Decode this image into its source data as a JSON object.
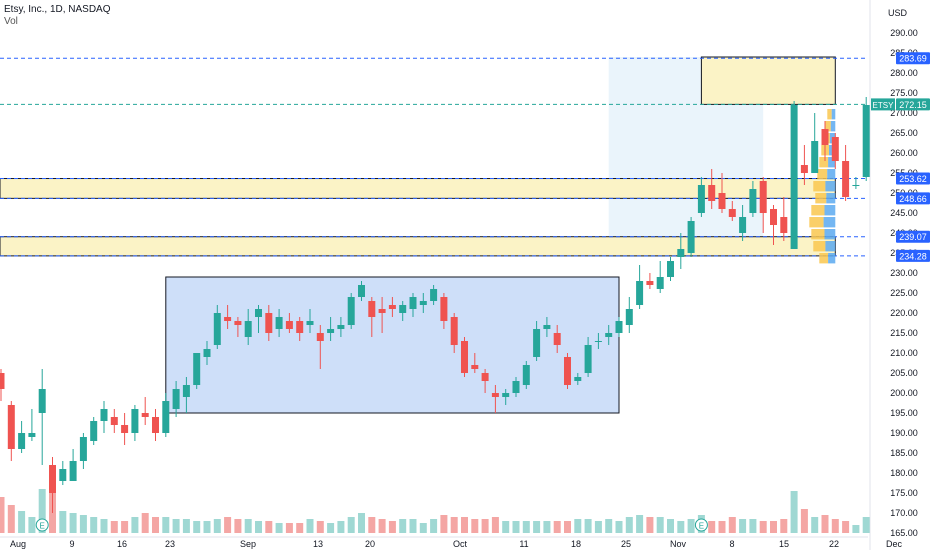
{
  "header": {
    "title": "Etsy, Inc., 1D, NASDAQ",
    "volume_label": "Vol"
  },
  "currency": "USD",
  "colors": {
    "up": "#26a69a",
    "down": "#ef5350",
    "vol_up": "#9fd8d3",
    "vol_down": "#f4a6a4",
    "box_blue": "#c9dcf8",
    "zone_yellow": "#fbf3c6",
    "line_blue": "#2962ff",
    "price_tag": "#2962ff",
    "ticker_tag": "#26a69a"
  },
  "chart_data": {
    "type": "candlestick",
    "ylim": [
      164,
      294
    ],
    "y_ticks": [
      165,
      170,
      175,
      180,
      185,
      190,
      195,
      200,
      205,
      210,
      215,
      220,
      225,
      230,
      235,
      240,
      245,
      250,
      255,
      260,
      265,
      270,
      275,
      280,
      285,
      290
    ],
    "x_ticks": [
      "Aug",
      "9",
      "16",
      "23",
      "Sep",
      "13",
      "20",
      "Oct",
      "11",
      "18",
      "25",
      "Nov",
      "8",
      "15",
      "22",
      "Dec"
    ],
    "candles": [
      {
        "o": 205,
        "h": 206,
        "l": 198,
        "c": 201
      },
      {
        "o": 197,
        "h": 198,
        "l": 183,
        "c": 186
      },
      {
        "o": 186,
        "h": 193,
        "l": 185,
        "c": 190
      },
      {
        "o": 189,
        "h": 196,
        "l": 188,
        "c": 190
      },
      {
        "o": 195,
        "h": 206,
        "l": 182,
        "c": 201
      },
      {
        "o": 182,
        "h": 184,
        "l": 170,
        "c": 175
      },
      {
        "o": 178,
        "h": 183,
        "l": 177,
        "c": 181
      },
      {
        "o": 178,
        "h": 186,
        "l": 178,
        "c": 183
      },
      {
        "o": 183,
        "h": 190,
        "l": 181,
        "c": 189
      },
      {
        "o": 188,
        "h": 194,
        "l": 187,
        "c": 193
      },
      {
        "o": 193,
        "h": 198,
        "l": 190,
        "c": 196
      },
      {
        "o": 194,
        "h": 196,
        "l": 190,
        "c": 192
      },
      {
        "o": 192,
        "h": 195,
        "l": 187,
        "c": 190
      },
      {
        "o": 190,
        "h": 197,
        "l": 188,
        "c": 196
      },
      {
        "o": 195,
        "h": 199,
        "l": 192,
        "c": 194
      },
      {
        "o": 194,
        "h": 196,
        "l": 188,
        "c": 190
      },
      {
        "o": 190,
        "h": 200,
        "l": 189,
        "c": 198
      },
      {
        "o": 196,
        "h": 203,
        "l": 194,
        "c": 201
      },
      {
        "o": 199,
        "h": 204,
        "l": 195,
        "c": 202
      },
      {
        "o": 202,
        "h": 210,
        "l": 201,
        "c": 210
      },
      {
        "o": 209,
        "h": 213,
        "l": 207,
        "c": 211
      },
      {
        "o": 212,
        "h": 222,
        "l": 211,
        "c": 220
      },
      {
        "o": 219,
        "h": 222,
        "l": 216,
        "c": 218
      },
      {
        "o": 218,
        "h": 219,
        "l": 214,
        "c": 217
      },
      {
        "o": 214,
        "h": 221,
        "l": 212,
        "c": 218
      },
      {
        "o": 219,
        "h": 222,
        "l": 215,
        "c": 221
      },
      {
        "o": 220,
        "h": 222,
        "l": 213,
        "c": 215
      },
      {
        "o": 216,
        "h": 221,
        "l": 214,
        "c": 219
      },
      {
        "o": 218,
        "h": 220,
        "l": 215,
        "c": 216
      },
      {
        "o": 218,
        "h": 219,
        "l": 213,
        "c": 215
      },
      {
        "o": 217,
        "h": 221,
        "l": 215,
        "c": 218
      },
      {
        "o": 215,
        "h": 217,
        "l": 206,
        "c": 213
      },
      {
        "o": 215,
        "h": 219,
        "l": 213,
        "c": 216
      },
      {
        "o": 216,
        "h": 219,
        "l": 214,
        "c": 217
      },
      {
        "o": 217,
        "h": 225,
        "l": 216,
        "c": 224
      },
      {
        "o": 224,
        "h": 228,
        "l": 223,
        "c": 227
      },
      {
        "o": 223,
        "h": 224,
        "l": 214,
        "c": 219
      },
      {
        "o": 221,
        "h": 224,
        "l": 215,
        "c": 220
      },
      {
        "o": 222,
        "h": 224,
        "l": 219,
        "c": 221
      },
      {
        "o": 220,
        "h": 223,
        "l": 218,
        "c": 222
      },
      {
        "o": 221,
        "h": 225,
        "l": 219,
        "c": 224
      },
      {
        "o": 222,
        "h": 225,
        "l": 220,
        "c": 223
      },
      {
        "o": 223,
        "h": 227,
        "l": 222,
        "c": 226
      },
      {
        "o": 224,
        "h": 225,
        "l": 216,
        "c": 218
      },
      {
        "o": 219,
        "h": 220,
        "l": 210,
        "c": 212
      },
      {
        "o": 213,
        "h": 214,
        "l": 204,
        "c": 205
      },
      {
        "o": 207,
        "h": 210,
        "l": 205,
        "c": 206
      },
      {
        "o": 205,
        "h": 206,
        "l": 200,
        "c": 203
      },
      {
        "o": 200,
        "h": 202,
        "l": 195,
        "c": 199
      },
      {
        "o": 199,
        "h": 201,
        "l": 197,
        "c": 200
      },
      {
        "o": 200,
        "h": 204,
        "l": 199,
        "c": 203
      },
      {
        "o": 202,
        "h": 208,
        "l": 201,
        "c": 207
      },
      {
        "o": 209,
        "h": 218,
        "l": 208,
        "c": 216
      },
      {
        "o": 216,
        "h": 219,
        "l": 214,
        "c": 217
      },
      {
        "o": 215,
        "h": 217,
        "l": 210,
        "c": 212
      },
      {
        "o": 209,
        "h": 210,
        "l": 201,
        "c": 202
      },
      {
        "o": 203,
        "h": 205,
        "l": 202,
        "c": 204
      },
      {
        "o": 205,
        "h": 214,
        "l": 204,
        "c": 212
      },
      {
        "o": 213,
        "h": 215,
        "l": 211,
        "c": 213
      },
      {
        "o": 214,
        "h": 217,
        "l": 212,
        "c": 215
      },
      {
        "o": 215,
        "h": 219,
        "l": 214,
        "c": 218
      },
      {
        "o": 217,
        "h": 224,
        "l": 215,
        "c": 221
      },
      {
        "o": 222,
        "h": 232,
        "l": 221,
        "c": 228
      },
      {
        "o": 228,
        "h": 230,
        "l": 226,
        "c": 227
      },
      {
        "o": 226,
        "h": 233,
        "l": 225,
        "c": 229
      },
      {
        "o": 229,
        "h": 234,
        "l": 228,
        "c": 233
      },
      {
        "o": 234,
        "h": 240,
        "l": 231,
        "c": 236
      },
      {
        "o": 235,
        "h": 244,
        "l": 234,
        "c": 243
      },
      {
        "o": 245,
        "h": 254,
        "l": 244,
        "c": 252
      },
      {
        "o": 252,
        "h": 256,
        "l": 246,
        "c": 248
      },
      {
        "o": 250,
        "h": 255,
        "l": 245,
        "c": 246
      },
      {
        "o": 246,
        "h": 248,
        "l": 243,
        "c": 244
      },
      {
        "o": 240,
        "h": 247,
        "l": 238,
        "c": 244
      },
      {
        "o": 245,
        "h": 253,
        "l": 244,
        "c": 251
      },
      {
        "o": 253,
        "h": 254,
        "l": 240,
        "c": 245
      },
      {
        "o": 246,
        "h": 247,
        "l": 237,
        "c": 242
      },
      {
        "o": 244,
        "h": 249,
        "l": 238,
        "c": 240
      },
      {
        "o": 236,
        "h": 273,
        "l": 236,
        "c": 272
      },
      {
        "o": 257,
        "h": 262,
        "l": 252,
        "c": 255
      },
      {
        "o": 255,
        "h": 270,
        "l": 255,
        "c": 263
      },
      {
        "o": 266,
        "h": 268,
        "l": 258,
        "c": 262
      },
      {
        "o": 264,
        "h": 265,
        "l": 256,
        "c": 258
      },
      {
        "o": 258,
        "h": 262,
        "l": 248,
        "c": 249
      },
      {
        "o": 252,
        "h": 254,
        "l": 251,
        "c": 252
      },
      {
        "o": 254,
        "h": 274,
        "l": 253,
        "c": 272
      }
    ],
    "volume": [
      18,
      14,
      11,
      8,
      22,
      20,
      11,
      10,
      9,
      8,
      7,
      6,
      6,
      8,
      10,
      8,
      8,
      7,
      7,
      6,
      6,
      7,
      8,
      7,
      7,
      6,
      6,
      5,
      5,
      5,
      7,
      6,
      5,
      6,
      8,
      10,
      8,
      7,
      6,
      7,
      7,
      5,
      7,
      9,
      8,
      8,
      7,
      7,
      8,
      6,
      6,
      6,
      6,
      6,
      6,
      6,
      7,
      7,
      6,
      7,
      6,
      8,
      9,
      8,
      8,
      7,
      6,
      7,
      9,
      6,
      6,
      8,
      7,
      7,
      6,
      6,
      7,
      21,
      12,
      8,
      9,
      7,
      6,
      4,
      8
    ],
    "volume_ylim": [
      0,
      90
    ],
    "price_levels": [
      283.69,
      272.15,
      253.62,
      248.66,
      239.07,
      234.28
    ],
    "price_labels": [
      "283.69",
      "272.15",
      "253.62",
      "248.66",
      "239.07",
      "234.28"
    ],
    "ticker_label": "ETSY",
    "annotations": [
      "E",
      "E"
    ]
  }
}
